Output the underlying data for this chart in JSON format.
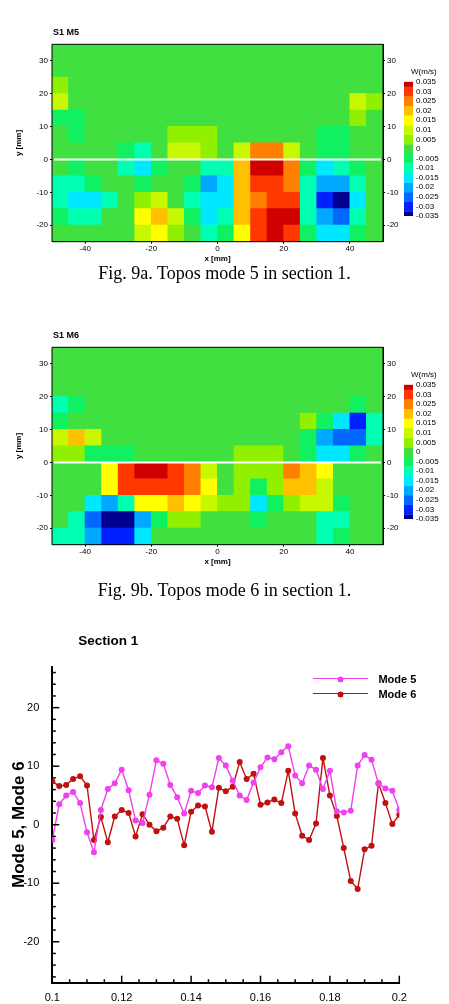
{
  "chart_data": [
    {
      "type": "heatmap",
      "title": "S1 M5",
      "xlabel": "x [mm]",
      "ylabel": "y [mm]",
      "clabel": "W(m/s)",
      "annotations": [
        "Fig. 9a. Topos mode 5 in section 1."
      ],
      "x": [
        -47.5,
        -42.5,
        -37.5,
        -32.5,
        -27.5,
        -22.5,
        -17.5,
        -12.5,
        -7.5,
        -2.5,
        2.5,
        7.5,
        12.5,
        17.5,
        22.5,
        27.5,
        32.5,
        37.5,
        42.5,
        47.5
      ],
      "y": [
        32.5,
        27.5,
        22.5,
        17.5,
        12.5,
        7.5,
        2.5,
        -2.5,
        -7.5,
        -12.5,
        -17.5,
        -22.5
      ],
      "cells": [
        [
          0,
          0,
          0,
          0,
          0,
          0,
          0,
          0,
          0,
          0,
          0,
          0,
          0,
          0,
          0,
          0,
          0,
          0,
          0,
          0
        ],
        [
          0,
          0,
          0,
          0,
          0,
          0,
          0,
          0,
          0,
          0,
          0,
          0,
          0,
          0,
          0,
          0,
          0,
          0,
          0,
          0
        ],
        [
          0.005,
          0,
          0,
          0,
          0,
          0,
          0,
          0,
          0,
          0,
          0,
          0,
          0,
          0,
          0,
          0,
          0,
          0,
          0,
          0
        ],
        [
          0.01,
          0,
          0,
          0,
          0,
          0,
          0,
          0,
          0,
          0,
          0,
          0,
          0,
          0,
          0,
          0,
          0,
          0,
          0.01,
          0.005
        ],
        [
          -0.005,
          -0.005,
          0,
          0,
          0,
          0,
          0,
          0,
          0,
          0,
          0,
          0,
          0,
          0,
          0,
          0,
          0,
          0,
          0.005,
          0
        ],
        [
          0,
          -0.005,
          0,
          0,
          0,
          0,
          0,
          0.005,
          0.005,
          0.005,
          0,
          0,
          0,
          0,
          0,
          0,
          -0.005,
          -0.005,
          0,
          0
        ],
        [
          0,
          0,
          0,
          0,
          -0.005,
          -0.01,
          0,
          0.01,
          0.01,
          0.005,
          0,
          0.01,
          0.025,
          0.025,
          0.01,
          0,
          -0.005,
          -0.005,
          0,
          0
        ],
        [
          0,
          -0.005,
          0,
          0,
          -0.01,
          -0.015,
          -0.005,
          0,
          0,
          -0.01,
          -0.01,
          0.02,
          0.035,
          0.035,
          0.025,
          -0.005,
          -0.015,
          -0.01,
          -0.005,
          0
        ],
        [
          -0.01,
          -0.01,
          -0.005,
          0,
          0,
          -0.005,
          0,
          0,
          -0.005,
          -0.02,
          -0.015,
          0.02,
          0.03,
          0.03,
          0.025,
          -0.01,
          -0.02,
          -0.02,
          -0.01,
          0
        ],
        [
          -0.01,
          -0.015,
          -0.015,
          -0.01,
          0,
          0.005,
          0.01,
          0,
          -0.01,
          -0.015,
          -0.015,
          0.02,
          0.025,
          0.03,
          0.03,
          -0.01,
          -0.03,
          -0.035,
          -0.015,
          0
        ],
        [
          -0.005,
          -0.01,
          -0.01,
          0,
          0,
          0.015,
          0.02,
          0.01,
          -0.005,
          -0.015,
          -0.01,
          0.02,
          0.03,
          0.035,
          0.035,
          -0.01,
          -0.02,
          -0.025,
          -0.01,
          0
        ],
        [
          0,
          0,
          0,
          0,
          0,
          0.01,
          0.015,
          0.005,
          0,
          -0.01,
          -0.005,
          0.015,
          0.03,
          0.035,
          0.03,
          -0.005,
          -0.015,
          -0.015,
          -0.005,
          0
        ]
      ],
      "xlim": [
        -50,
        50
      ],
      "xticks": [
        -40,
        -20,
        0,
        20,
        40
      ],
      "ylim": [
        -25,
        35
      ],
      "yticks": [
        -20,
        -10,
        0,
        10,
        20,
        30
      ],
      "y2lim": [
        -25,
        35
      ],
      "y2ticks": [
        -20,
        -10,
        0,
        10,
        20,
        30
      ],
      "clim": [
        -0.035,
        0.035
      ],
      "cticks": [
        -0.035,
        -0.03,
        -0.025,
        -0.02,
        -0.015,
        -0.01,
        -0.005,
        0,
        0.005,
        0.01,
        0.015,
        0.02,
        0.025,
        0.03,
        0.035
      ],
      "ref_lines": [
        {
          "axis": "y",
          "value": 0,
          "color": "#ffffff"
        }
      ]
    },
    {
      "type": "heatmap",
      "title": "S1 M6",
      "xlabel": "x [mm]",
      "ylabel": "y [mm]",
      "clabel": "W(m/s)",
      "annotations": [
        "Fig. 9b. Topos mode 6 in section 1."
      ],
      "x": [
        -47.5,
        -42.5,
        -37.5,
        -32.5,
        -27.5,
        -22.5,
        -17.5,
        -12.5,
        -7.5,
        -2.5,
        2.5,
        7.5,
        12.5,
        17.5,
        22.5,
        27.5,
        32.5,
        37.5,
        42.5,
        47.5
      ],
      "y": [
        32.5,
        27.5,
        22.5,
        17.5,
        12.5,
        7.5,
        2.5,
        -2.5,
        -7.5,
        -12.5,
        -17.5,
        -22.5
      ],
      "cells": [
        [
          0,
          0,
          0,
          0,
          0,
          0,
          0,
          0,
          0,
          0,
          0,
          0,
          0,
          0,
          0,
          0,
          0,
          0,
          0,
          0
        ],
        [
          0,
          0,
          0,
          0,
          0,
          0,
          0,
          0,
          0,
          0,
          0,
          0,
          0,
          0,
          0,
          0,
          0,
          0,
          0,
          0
        ],
        [
          0,
          0,
          0,
          0,
          0,
          0,
          0,
          0,
          0,
          0,
          0,
          0,
          0,
          0,
          0,
          0,
          0,
          0,
          0,
          0
        ],
        [
          -0.01,
          -0.005,
          0,
          0,
          0,
          0,
          0,
          0,
          0,
          0,
          0,
          0,
          0,
          0,
          0,
          0,
          0,
          0,
          -0.005,
          0
        ],
        [
          -0.005,
          0,
          0,
          0,
          0,
          0,
          0,
          0,
          0,
          0,
          0,
          0,
          0,
          0,
          0,
          0.005,
          -0.005,
          -0.015,
          -0.03,
          -0.01
        ],
        [
          0.01,
          0.02,
          0.01,
          0,
          0,
          0,
          0,
          0,
          0,
          0,
          0,
          0,
          0,
          0,
          0,
          -0.005,
          -0.02,
          -0.025,
          -0.025,
          -0.01
        ],
        [
          0.005,
          0.005,
          -0.005,
          -0.005,
          -0.005,
          0,
          0,
          0,
          0,
          0,
          0,
          0.005,
          0.005,
          0.005,
          0,
          -0.005,
          -0.015,
          -0.015,
          -0.005,
          0
        ],
        [
          0,
          0,
          0,
          0.015,
          0.03,
          0.035,
          0.035,
          0.03,
          0.025,
          0.01,
          0,
          0.005,
          0.005,
          0.005,
          0.025,
          0.02,
          0.015,
          0,
          0,
          0
        ],
        [
          0,
          0,
          0,
          0.015,
          0.03,
          0.03,
          0.03,
          0.03,
          0.025,
          0.015,
          0,
          0.005,
          -0.005,
          0.005,
          0.02,
          0.02,
          0.01,
          0,
          0,
          0
        ],
        [
          0,
          0,
          -0.015,
          -0.02,
          -0.01,
          0.015,
          0.015,
          0.02,
          0.015,
          0.01,
          0.005,
          0.005,
          -0.015,
          -0.005,
          0.005,
          0.01,
          0.01,
          -0.005,
          0,
          0
        ],
        [
          0,
          -0.01,
          -0.025,
          -0.035,
          -0.035,
          -0.02,
          -0.005,
          0.005,
          0.005,
          0,
          0,
          0,
          -0.005,
          0,
          0,
          0,
          -0.01,
          -0.01,
          0,
          0
        ],
        [
          -0.01,
          -0.01,
          -0.02,
          -0.03,
          -0.03,
          -0.015,
          0,
          0,
          0,
          0,
          0,
          0,
          0,
          0,
          0,
          0,
          -0.01,
          -0.005,
          0,
          0
        ]
      ],
      "xlim": [
        -50,
        50
      ],
      "xticks": [
        -40,
        -20,
        0,
        20,
        40
      ],
      "ylim": [
        -25,
        35
      ],
      "yticks": [
        -20,
        -10,
        0,
        10,
        20,
        30
      ],
      "y2lim": [
        -25,
        35
      ],
      "y2ticks": [
        -20,
        -10,
        0,
        10,
        20,
        30
      ],
      "clim": [
        -0.035,
        0.035
      ],
      "cticks": [
        -0.035,
        -0.03,
        -0.025,
        -0.02,
        -0.015,
        -0.01,
        -0.005,
        0,
        0.005,
        0.01,
        0.015,
        0.02,
        0.025,
        0.03,
        0.035
      ],
      "ref_lines": [
        {
          "axis": "y",
          "value": 0,
          "color": "#ffffff"
        }
      ]
    },
    {
      "type": "line",
      "title": "Section 1",
      "ylabel": "Mode 5, Mode 6",
      "legend": "top right",
      "marker": "circle",
      "x": [
        0.1,
        0.102,
        0.104,
        0.106,
        0.108,
        0.11,
        0.112,
        0.114,
        0.116,
        0.118,
        0.12,
        0.122,
        0.124,
        0.126,
        0.128,
        0.13,
        0.132,
        0.134,
        0.136,
        0.138,
        0.14,
        0.142,
        0.144,
        0.146,
        0.148,
        0.15,
        0.152,
        0.154,
        0.156,
        0.158,
        0.16,
        0.162,
        0.164,
        0.166,
        0.168,
        0.17,
        0.172,
        0.174,
        0.176,
        0.178,
        0.18,
        0.182,
        0.184,
        0.186,
        0.188,
        0.19,
        0.192,
        0.194,
        0.196,
        0.198,
        0.2
      ],
      "series": [
        {
          "name": "Mode 5",
          "color": "#f040f0",
          "values": [
            -2.6,
            3.5,
            5.0,
            5.6,
            3.7,
            -1.3,
            -4.7,
            2.5,
            6.1,
            7.1,
            9.4,
            5.9,
            0.7,
            0.3,
            5.1,
            11.0,
            10.4,
            6.8,
            4.7,
            1.9,
            5.8,
            5.4,
            6.7,
            6.4,
            11.4,
            10.1,
            7.5,
            5.0,
            4.2,
            7.2,
            9.8,
            11.5,
            11.2,
            12.4,
            13.4,
            8.4,
            7.1,
            10.1,
            9.4,
            6.1,
            9.2,
            2.3,
            2.1,
            2.4,
            10.1,
            11.9,
            11.1,
            7.0,
            6.2,
            5.8,
            2.5
          ]
        },
        {
          "name": "Mode 6",
          "color": "#c01010",
          "values": [
            7.4,
            6.6,
            6.8,
            7.8,
            8.3,
            6.7,
            -2.6,
            1.3,
            -3.0,
            1.4,
            2.5,
            2.0,
            -2.0,
            1.8,
            0.0,
            -1.1,
            -0.5,
            1.4,
            1.0,
            -3.5,
            2.2,
            3.3,
            3.1,
            -1.2,
            6.3,
            5.7,
            6.5,
            10.7,
            7.8,
            8.7,
            3.4,
            3.8,
            4.3,
            3.7,
            9.2,
            1.9,
            -1.9,
            -2.6,
            0.2,
            11.4,
            5.0,
            1.5,
            -4.0,
            -9.6,
            -11.0,
            -4.2,
            -3.6,
            7.1,
            3.7,
            0.1,
            1.7
          ]
        }
      ],
      "xlim": [
        0.1,
        0.2
      ],
      "xticks": [
        0.1,
        {
          "value": 0.105,
          "label": null
        },
        {
          "value": 0.11,
          "label": null
        },
        {
          "value": 0.115,
          "label": null
        },
        0.12,
        {
          "value": 0.125,
          "label": null
        },
        {
          "value": 0.13,
          "label": null
        },
        {
          "value": 0.135,
          "label": null
        },
        0.14,
        {
          "value": 0.145,
          "label": null
        },
        {
          "value": 0.15,
          "label": null
        },
        {
          "value": 0.155,
          "label": null
        },
        0.16,
        {
          "value": 0.165,
          "label": null
        },
        {
          "value": 0.17,
          "label": null
        },
        {
          "value": 0.175,
          "label": null
        },
        0.18,
        {
          "value": 0.185,
          "label": null
        },
        {
          "value": 0.19,
          "label": null
        },
        {
          "value": 0.195,
          "label": null
        },
        0.2
      ],
      "ylim": [
        -27,
        27
      ],
      "yticks": [
        {
          "value": -26,
          "label": null
        },
        {
          "value": -24,
          "label": null
        },
        {
          "value": -22,
          "label": null
        },
        -20,
        {
          "value": -18,
          "label": null
        },
        {
          "value": -16,
          "label": null
        },
        {
          "value": -14,
          "label": null
        },
        {
          "value": -12,
          "label": null
        },
        -10,
        {
          "value": -8,
          "label": null
        },
        {
          "value": -6,
          "label": null
        },
        {
          "value": -4,
          "label": null
        },
        {
          "value": -2,
          "label": null
        },
        0,
        {
          "value": 2,
          "label": null
        },
        {
          "value": 4,
          "label": null
        },
        {
          "value": 6,
          "label": null
        },
        {
          "value": 8,
          "label": null
        },
        10,
        {
          "value": 12,
          "label": null
        },
        {
          "value": 14,
          "label": null
        },
        {
          "value": 16,
          "label": null
        },
        {
          "value": 18,
          "label": null
        },
        20,
        {
          "value": 22,
          "label": null
        },
        {
          "value": 24,
          "label": null
        },
        {
          "value": 26,
          "label": null
        }
      ]
    }
  ]
}
